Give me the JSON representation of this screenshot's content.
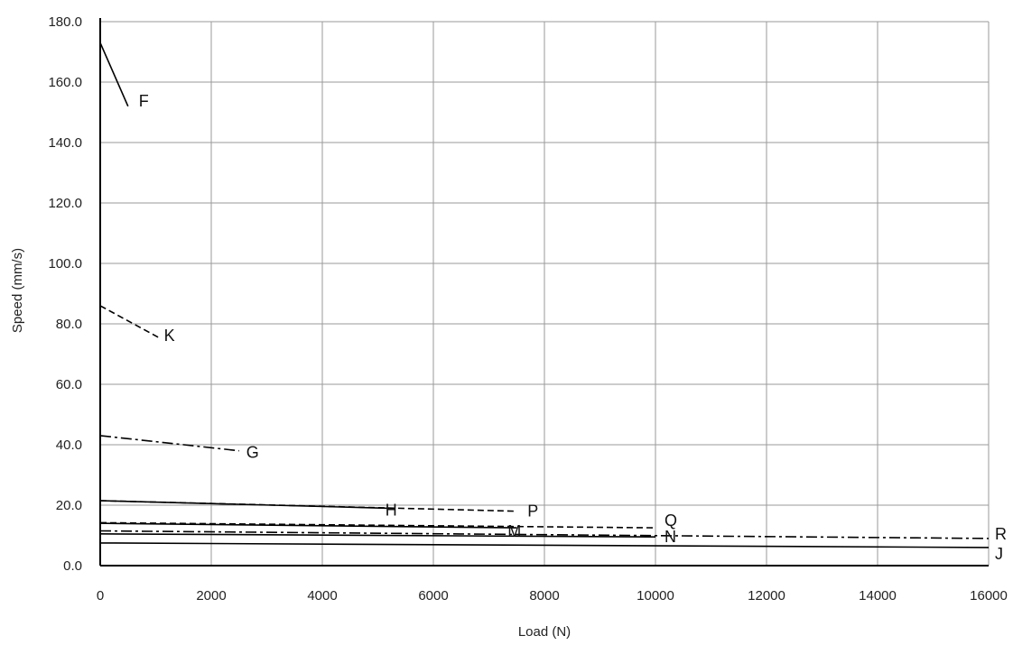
{
  "chart_data": {
    "type": "line",
    "title": "",
    "xlabel": "Load (N)",
    "ylabel": "Speed (mm/s)",
    "xlim": [
      0,
      16000
    ],
    "ylim": [
      0,
      180
    ],
    "x_ticks": [
      "0",
      "2000",
      "4000",
      "6000",
      "8000",
      "10000",
      "12000",
      "14000",
      "16000"
    ],
    "y_ticks": [
      "0.0",
      "20.0",
      "40.0",
      "60.0",
      "80.0",
      "100.0",
      "120.0",
      "140.0",
      "160.0",
      "180.0"
    ],
    "grid": true,
    "line_color": "#000000",
    "grid_color": "#9a9a9a",
    "series": [
      {
        "name": "F",
        "style": "solid",
        "x": [
          0,
          500
        ],
        "y": [
          173,
          152
        ]
      },
      {
        "name": "K",
        "style": "dashed",
        "x": [
          0,
          1050
        ],
        "y": [
          86,
          75.5
        ]
      },
      {
        "name": "G",
        "style": "dashdot",
        "x": [
          0,
          2500
        ],
        "y": [
          43,
          38
        ]
      },
      {
        "name": "H",
        "style": "solid",
        "x": [
          0,
          5200
        ],
        "y": [
          21.5,
          19
        ]
      },
      {
        "name": "P",
        "style": "dashed",
        "x": [
          0,
          7500
        ],
        "y": [
          21.5,
          18
        ]
      },
      {
        "name": "M",
        "style": "solid",
        "x": [
          0,
          7500
        ],
        "y": [
          14,
          12.5
        ]
      },
      {
        "name": "Q",
        "style": "dashed",
        "x": [
          0,
          10000
        ],
        "y": [
          14.2,
          12.5
        ]
      },
      {
        "name": "N",
        "style": "solid",
        "x": [
          0,
          10000
        ],
        "y": [
          10.5,
          9.5
        ]
      },
      {
        "name": "R",
        "style": "dashdot",
        "x": [
          0,
          16000
        ],
        "y": [
          11.5,
          9
        ]
      },
      {
        "name": "J",
        "style": "solid",
        "x": [
          0,
          16000
        ],
        "y": [
          7.5,
          6
        ]
      }
    ]
  }
}
